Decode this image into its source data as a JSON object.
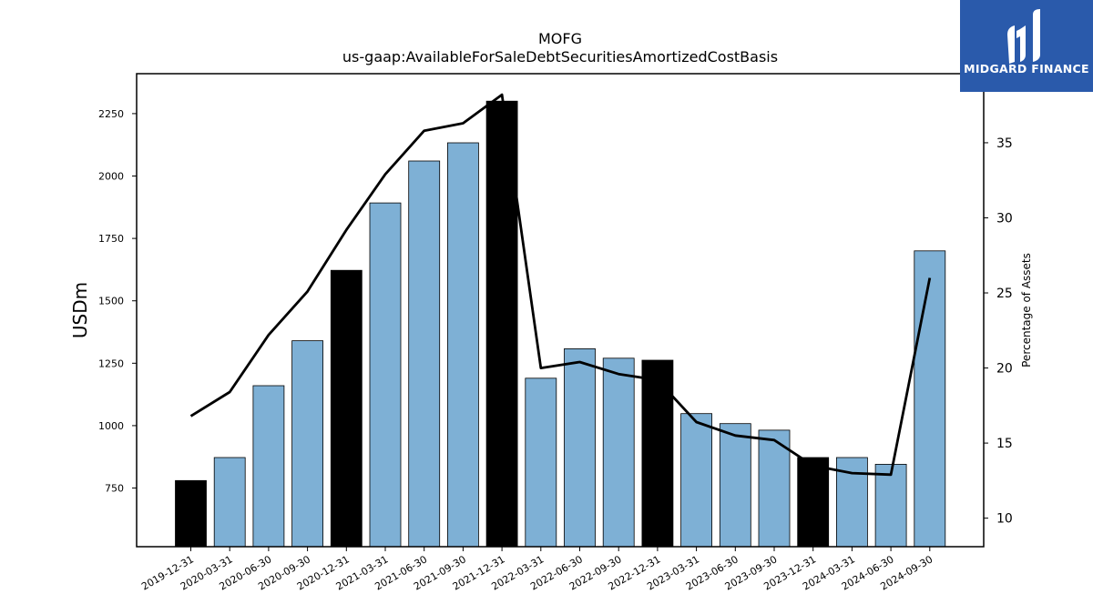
{
  "brand": {
    "name": "MIDGARD FINANCE",
    "bg_color": "#2a5aab"
  },
  "chart_data": {
    "type": "bar",
    "title": "MOFG",
    "subtitle": "us-gaap:AvailableForSaleDebtSecuritiesAmortizedCostBasis",
    "ylabel": "USDm",
    "y2label": "Percentage of Assets",
    "ylim": [
      515,
      2410
    ],
    "y2lim": [
      8.1,
      39.6
    ],
    "yticks": [
      750,
      1000,
      1250,
      1500,
      1750,
      2000,
      2250
    ],
    "y2ticks": [
      10,
      15,
      20,
      25,
      30,
      35
    ],
    "categories": [
      "2019-12-31",
      "2020-03-31",
      "2020-06-30",
      "2020-09-30",
      "2020-12-31",
      "2021-03-31",
      "2021-06-30",
      "2021-09-30",
      "2021-12-31",
      "2022-03-31",
      "2022-06-30",
      "2022-09-30",
      "2022-12-31",
      "2023-03-31",
      "2023-06-30",
      "2023-09-30",
      "2023-12-31",
      "2024-03-31",
      "2024-06-30",
      "2024-09-30"
    ],
    "values": [
      780,
      872,
      1160,
      1340,
      1622,
      1892,
      2060,
      2133,
      2300,
      1190,
      1308,
      1270,
      1262,
      1048,
      1008,
      982,
      872,
      872,
      845,
      1700
    ],
    "highlight": [
      true,
      false,
      false,
      false,
      true,
      false,
      false,
      false,
      true,
      false,
      false,
      false,
      true,
      false,
      false,
      false,
      true,
      false,
      false,
      false
    ],
    "line_values": [
      16.8,
      18.4,
      22.2,
      25.1,
      29.2,
      32.9,
      35.8,
      36.3,
      38.2,
      20.0,
      20.4,
      19.6,
      19.2,
      16.4,
      15.5,
      15.2,
      13.5,
      13.0,
      12.9,
      26.0
    ],
    "bar_color": "#7eb0d5",
    "highlight_color": "#000000",
    "line_color": "#000000"
  }
}
